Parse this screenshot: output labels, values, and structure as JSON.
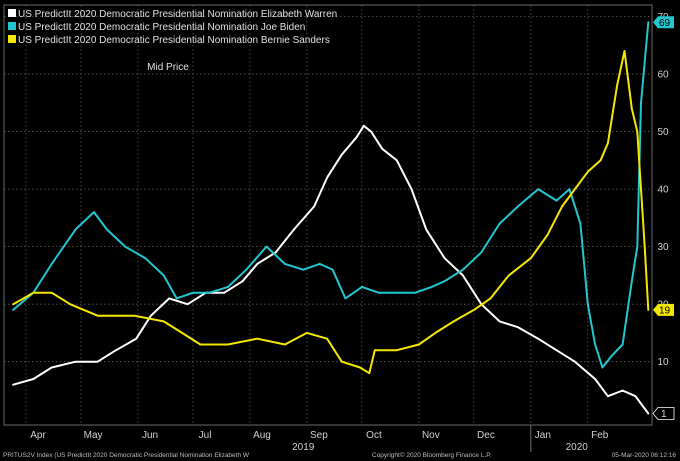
{
  "chart_data": {
    "type": "line",
    "title": "Mid Price",
    "series": [
      {
        "name": "US PredictIt 2020 Democratic Presidential Nomination Elizabeth Warren",
        "color": "#ffffff",
        "last_label": "1",
        "points": [
          [
            "2019-03-25",
            6
          ],
          [
            "2019-04-05",
            7
          ],
          [
            "2019-04-15",
            9
          ],
          [
            "2019-04-28",
            10
          ],
          [
            "2019-05-10",
            10
          ],
          [
            "2019-05-20",
            12
          ],
          [
            "2019-05-31",
            14
          ],
          [
            "2019-06-08",
            18
          ],
          [
            "2019-06-18",
            21
          ],
          [
            "2019-06-28",
            20
          ],
          [
            "2019-07-08",
            22
          ],
          [
            "2019-07-18",
            22
          ],
          [
            "2019-07-28",
            24
          ],
          [
            "2019-08-05",
            27
          ],
          [
            "2019-08-15",
            29
          ],
          [
            "2019-08-25",
            33
          ],
          [
            "2019-09-05",
            37
          ],
          [
            "2019-09-12",
            42
          ],
          [
            "2019-09-20",
            46
          ],
          [
            "2019-09-28",
            49
          ],
          [
            "2019-10-02",
            51
          ],
          [
            "2019-10-06",
            50
          ],
          [
            "2019-10-12",
            47
          ],
          [
            "2019-10-20",
            45
          ],
          [
            "2019-10-28",
            40
          ],
          [
            "2019-11-05",
            33
          ],
          [
            "2019-11-15",
            28
          ],
          [
            "2019-11-25",
            25
          ],
          [
            "2019-12-05",
            20
          ],
          [
            "2019-12-15",
            17
          ],
          [
            "2019-12-25",
            16
          ],
          [
            "2020-01-05",
            14
          ],
          [
            "2020-01-15",
            12
          ],
          [
            "2020-01-25",
            10
          ],
          [
            "2020-02-05",
            7
          ],
          [
            "2020-02-12",
            4
          ],
          [
            "2020-02-20",
            5
          ],
          [
            "2020-02-27",
            4
          ],
          [
            "2020-03-05",
            1
          ]
        ]
      },
      {
        "name": "US PredictIt 2020 Democratic Presidential Nomination Joe Biden",
        "color": "#21c7d0",
        "last_label": "69",
        "points": [
          [
            "2019-03-25",
            19
          ],
          [
            "2019-04-05",
            22
          ],
          [
            "2019-04-15",
            27
          ],
          [
            "2019-04-28",
            33
          ],
          [
            "2019-05-08",
            36
          ],
          [
            "2019-05-15",
            33
          ],
          [
            "2019-05-25",
            30
          ],
          [
            "2019-06-05",
            28
          ],
          [
            "2019-06-15",
            25
          ],
          [
            "2019-06-22",
            21
          ],
          [
            "2019-07-01",
            22
          ],
          [
            "2019-07-10",
            22
          ],
          [
            "2019-07-20",
            23
          ],
          [
            "2019-07-30",
            26
          ],
          [
            "2019-08-10",
            30
          ],
          [
            "2019-08-20",
            27
          ],
          [
            "2019-08-30",
            26
          ],
          [
            "2019-09-08",
            27
          ],
          [
            "2019-09-15",
            26
          ],
          [
            "2019-09-22",
            21
          ],
          [
            "2019-10-01",
            23
          ],
          [
            "2019-10-10",
            22
          ],
          [
            "2019-10-20",
            22
          ],
          [
            "2019-10-30",
            22
          ],
          [
            "2019-11-08",
            23
          ],
          [
            "2019-11-15",
            24
          ],
          [
            "2019-11-25",
            26
          ],
          [
            "2019-12-05",
            29
          ],
          [
            "2019-12-15",
            34
          ],
          [
            "2019-12-25",
            37
          ],
          [
            "2020-01-05",
            40
          ],
          [
            "2020-01-15",
            38
          ],
          [
            "2020-01-22",
            40
          ],
          [
            "2020-01-28",
            34
          ],
          [
            "2020-02-01",
            20
          ],
          [
            "2020-02-05",
            13
          ],
          [
            "2020-02-09",
            9
          ],
          [
            "2020-02-14",
            11
          ],
          [
            "2020-02-20",
            13
          ],
          [
            "2020-02-25",
            24
          ],
          [
            "2020-02-28",
            30
          ],
          [
            "2020-03-01",
            55
          ],
          [
            "2020-03-05",
            69
          ]
        ]
      },
      {
        "name": "US PredictIt 2020 Democratic Presidential Nomination Bernie Sanders",
        "color": "#f5e800",
        "last_label": "19",
        "points": [
          [
            "2019-03-25",
            20
          ],
          [
            "2019-04-05",
            22
          ],
          [
            "2019-04-15",
            22
          ],
          [
            "2019-04-25",
            20
          ],
          [
            "2019-05-10",
            18
          ],
          [
            "2019-05-30",
            18
          ],
          [
            "2019-06-15",
            17
          ],
          [
            "2019-06-25",
            15
          ],
          [
            "2019-07-05",
            13
          ],
          [
            "2019-07-20",
            13
          ],
          [
            "2019-08-05",
            14
          ],
          [
            "2019-08-20",
            13
          ],
          [
            "2019-09-01",
            15
          ],
          [
            "2019-09-12",
            14
          ],
          [
            "2019-09-20",
            10
          ],
          [
            "2019-09-30",
            9
          ],
          [
            "2019-10-05",
            8
          ],
          [
            "2019-10-08",
            12
          ],
          [
            "2019-10-20",
            12
          ],
          [
            "2019-11-01",
            13
          ],
          [
            "2019-11-10",
            15
          ],
          [
            "2019-11-20",
            17
          ],
          [
            "2019-12-01",
            19
          ],
          [
            "2019-12-10",
            21
          ],
          [
            "2019-12-20",
            25
          ],
          [
            "2020-01-01",
            28
          ],
          [
            "2020-01-10",
            32
          ],
          [
            "2020-01-18",
            37
          ],
          [
            "2020-01-25",
            40
          ],
          [
            "2020-02-01",
            43
          ],
          [
            "2020-02-08",
            45
          ],
          [
            "2020-02-12",
            48
          ],
          [
            "2020-02-17",
            58
          ],
          [
            "2020-02-21",
            64
          ],
          [
            "2020-02-25",
            54
          ],
          [
            "2020-02-28",
            50
          ],
          [
            "2020-03-01",
            40
          ],
          [
            "2020-03-03",
            30
          ],
          [
            "2020-03-05",
            19
          ]
        ]
      }
    ],
    "x_range": [
      "2019-03-20",
      "2020-03-07"
    ],
    "x_ticks": [
      {
        "label": "Apr",
        "date": "2019-04-01"
      },
      {
        "label": "May",
        "date": "2019-05-01"
      },
      {
        "label": "Jun",
        "date": "2019-06-01"
      },
      {
        "label": "Jul",
        "date": "2019-07-01"
      },
      {
        "label": "Aug",
        "date": "2019-08-01"
      },
      {
        "label": "Sep",
        "date": "2019-09-01"
      },
      {
        "label": "Oct",
        "date": "2019-10-01"
      },
      {
        "label": "Nov",
        "date": "2019-11-01"
      },
      {
        "label": "Dec",
        "date": "2019-12-01"
      },
      {
        "label": "Jan",
        "date": "2020-01-01"
      },
      {
        "label": "Feb",
        "date": "2020-02-01"
      }
    ],
    "year_labels": [
      {
        "label": "2019",
        "date": "2019-08-30"
      },
      {
        "label": "2020",
        "date": "2020-01-26"
      }
    ],
    "year_dividers": [
      "2020-01-01"
    ],
    "ylim": [
      -1,
      72
    ],
    "y_ticks": [
      10,
      20,
      30,
      40,
      50,
      60,
      70
    ],
    "grid": true,
    "legend_position": "top-left"
  },
  "footer": {
    "left": "PRITUS2V Index (US PredictIt 2020 Democratic Presidential Nomination Elizabeth W",
    "center": "Copyright© 2020 Bloomberg Finance L.P.",
    "right": "05-Mar-2020 06:12:16"
  },
  "colors": {
    "background": "#000000",
    "grid": "#5a5a5a",
    "frame": "#6a6a6a"
  }
}
